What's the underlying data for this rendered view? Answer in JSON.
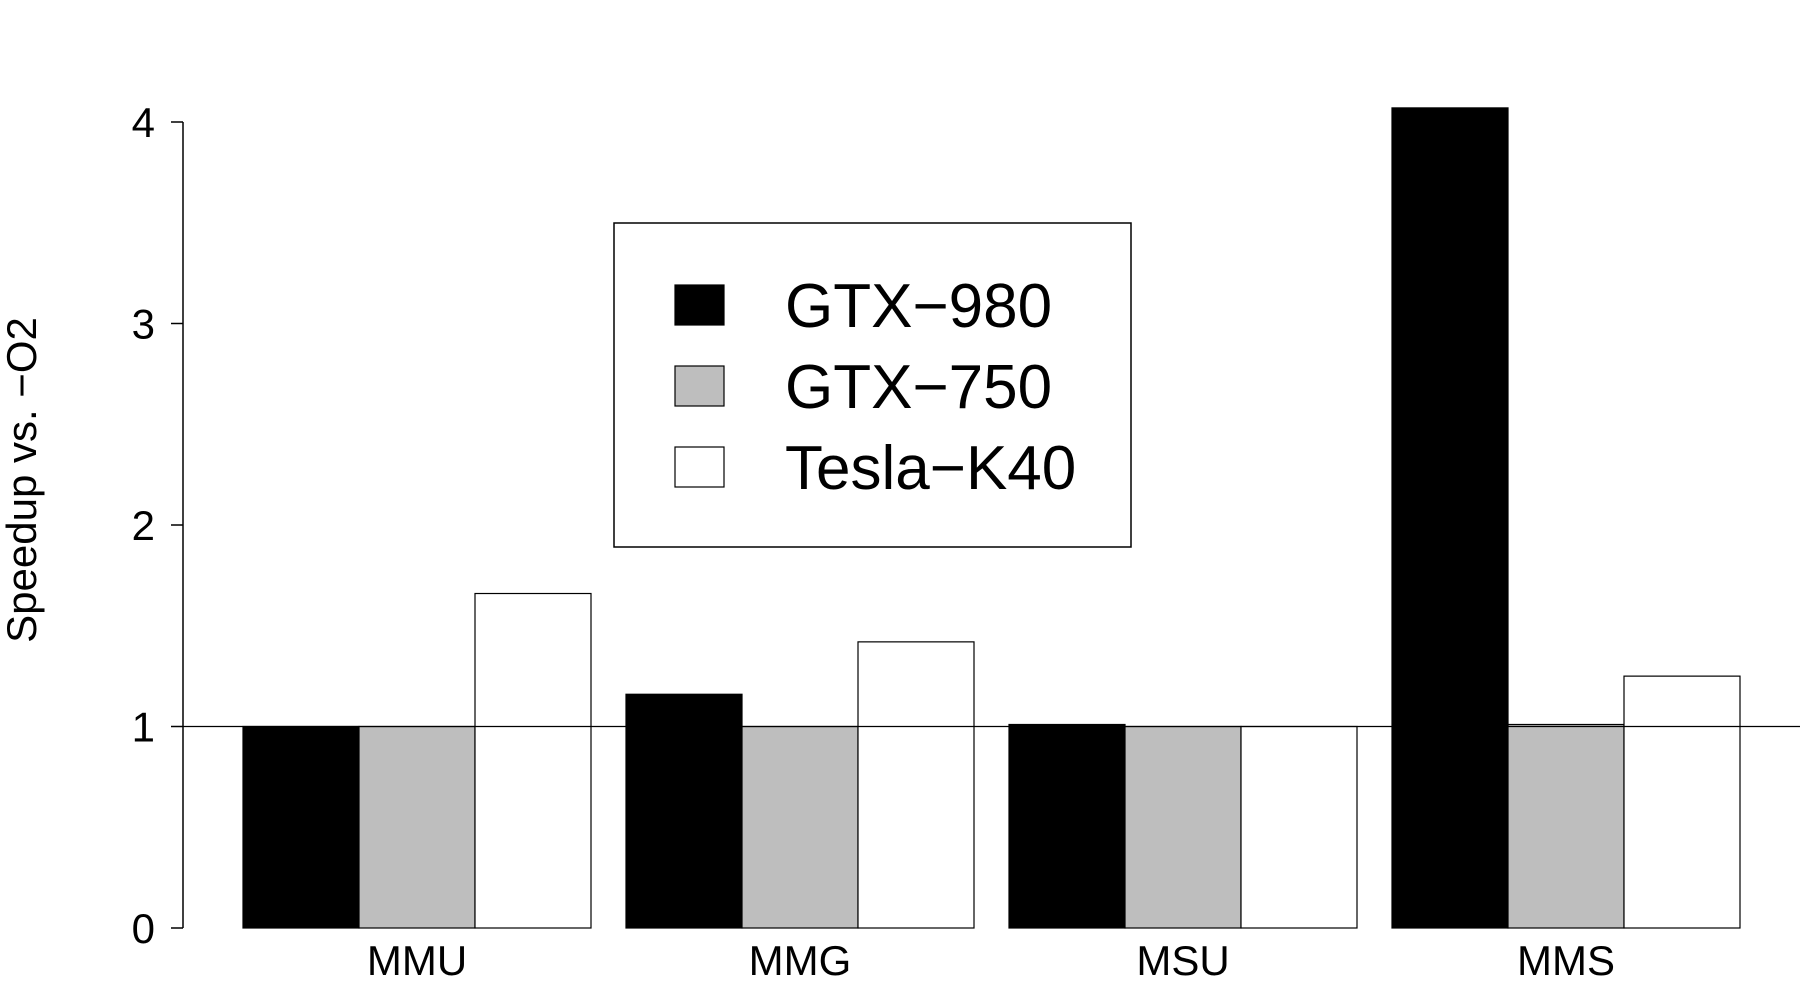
{
  "chart_data": {
    "type": "bar",
    "title": "",
    "xlabel": "",
    "ylabel": "Speedup vs. −O2",
    "categories": [
      "MMU",
      "MMG",
      "MSU",
      "MMS"
    ],
    "series": [
      {
        "name": "GTX−980",
        "values": [
          1.0,
          1.16,
          1.01,
          4.07
        ]
      },
      {
        "name": "GTX−750",
        "values": [
          1.0,
          1.0,
          1.0,
          1.01
        ]
      },
      {
        "name": "Tesla−K40",
        "values": [
          1.66,
          1.42,
          1.0,
          1.25
        ]
      }
    ],
    "ylim": [
      0,
      4
    ],
    "yticks": [
      "0",
      "1",
      "2",
      "3",
      "4"
    ],
    "reference_line": 1,
    "legend_position": "top-center",
    "grid": false,
    "colors": {
      "GTX−980": "#000000",
      "GTX−750": "#bebebe",
      "Tesla−K40": "#ffffff",
      "outline": "#000000"
    }
  }
}
